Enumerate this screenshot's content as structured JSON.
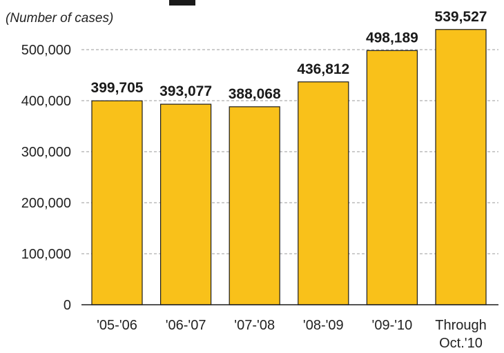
{
  "chart_data": {
    "type": "bar",
    "title": "",
    "subtitle": "(Number of cases)",
    "xlabel": "",
    "ylabel": "",
    "categories": [
      "'05-'06",
      "'06-'07",
      "'07-'08",
      "'08-'09",
      "'09-'10",
      "Through Oct.'10"
    ],
    "values": [
      399705,
      393077,
      388068,
      436812,
      498189,
      539527
    ],
    "value_labels": [
      "399,705",
      "393,077",
      "388,068",
      "436,812",
      "498,189",
      "539,527"
    ],
    "ylim": [
      0,
      500000
    ],
    "yticks": [
      0,
      100000,
      200000,
      300000,
      400000,
      500000
    ],
    "ytick_labels": [
      "0",
      "100,000",
      "200,000",
      "300,000",
      "400,000",
      "500,000"
    ],
    "grid": true,
    "legend": "none",
    "colors": {
      "bar_fill": "#F9C11A",
      "bar_stroke": "#1a1a1a",
      "grid": "#9a9a9a",
      "axis": "#1a1a1a"
    }
  }
}
